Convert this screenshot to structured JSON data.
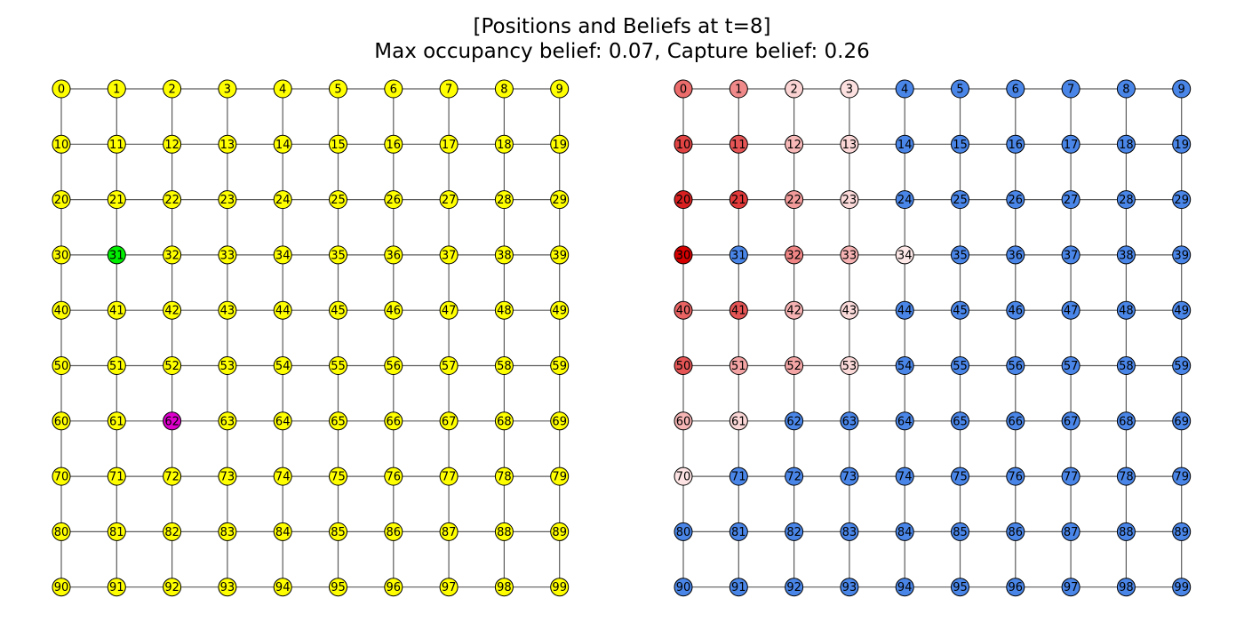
{
  "title": {
    "line1": "[Positions and Beliefs at t=8]",
    "line2": "Max occupancy belief: 0.07, Capture belief: 0.26"
  },
  "graph": {
    "rows": 10,
    "cols": 10,
    "node_labels": [
      "0",
      "1",
      "2",
      "3",
      "4",
      "5",
      "6",
      "7",
      "8",
      "9",
      "10",
      "11",
      "12",
      "13",
      "14",
      "15",
      "16",
      "17",
      "18",
      "19",
      "20",
      "21",
      "22",
      "23",
      "24",
      "25",
      "26",
      "27",
      "28",
      "29",
      "30",
      "31",
      "32",
      "33",
      "34",
      "35",
      "36",
      "37",
      "38",
      "39",
      "40",
      "41",
      "42",
      "43",
      "44",
      "45",
      "46",
      "47",
      "48",
      "49",
      "50",
      "51",
      "52",
      "53",
      "54",
      "55",
      "56",
      "57",
      "58",
      "59",
      "60",
      "61",
      "62",
      "63",
      "64",
      "65",
      "66",
      "67",
      "68",
      "69",
      "70",
      "71",
      "72",
      "73",
      "74",
      "75",
      "76",
      "77",
      "78",
      "79",
      "80",
      "81",
      "82",
      "83",
      "84",
      "85",
      "86",
      "87",
      "88",
      "89",
      "90",
      "91",
      "92",
      "93",
      "94",
      "95",
      "96",
      "97",
      "98",
      "99"
    ]
  },
  "positions_panel": {
    "default_color": "#ffff00",
    "highlights": [
      {
        "node": 31,
        "color": "#00ee00"
      },
      {
        "node": 62,
        "color": "#dd00cc"
      }
    ]
  },
  "beliefs_panel": {
    "zero_color": "#4a86e8",
    "node_colors": {
      "0": "#ec6b6b",
      "1": "#f08a8a",
      "2": "#fbd3d3",
      "3": "#fde1e1",
      "10": "#e24444",
      "11": "#e65555",
      "12": "#f7b8b8",
      "13": "#fbd6d6",
      "20": "#d92020",
      "21": "#e23a3a",
      "22": "#f39b9b",
      "23": "#fbd9d9",
      "30": "#d60000",
      "32": "#ef8585",
      "33": "#f6b2b2",
      "34": "#fde7e7",
      "40": "#ea6464",
      "41": "#e65555",
      "42": "#f6b2b2",
      "43": "#fbdada",
      "50": "#e55555",
      "51": "#f4a4a4",
      "52": "#f4a6a6",
      "53": "#fbd9d9",
      "60": "#f6b6b6",
      "61": "#fbd6d6",
      "70": "#fde3e3"
    }
  }
}
